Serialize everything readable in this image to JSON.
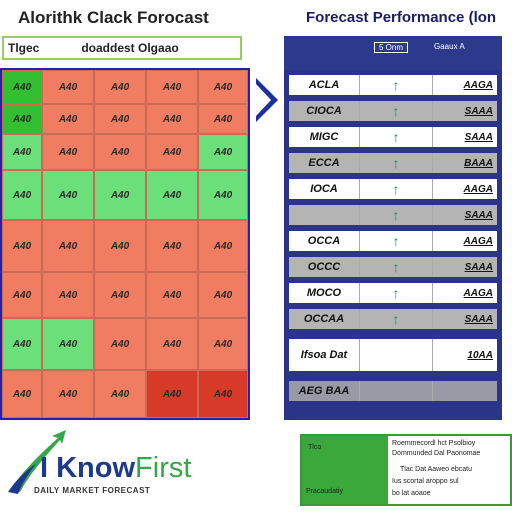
{
  "header": {
    "left_title": "Alorithk Clack Forocast",
    "right_title": "Forecast Performance (lon",
    "subbar_left": "Tlgec",
    "subbar_right": "doaddest Olgaao"
  },
  "colors": {
    "red": "#f07c62",
    "green": "#6be07a",
    "dark_green": "#32c032",
    "dark_red": "#d83a2a",
    "navy": "#2a3488"
  },
  "heatmap": {
    "rows": [
      [
        {
          "t": "A40",
          "c": "dark_green"
        },
        {
          "t": "A40",
          "c": "red"
        },
        {
          "t": "A40",
          "c": "red"
        },
        {
          "t": "A40",
          "c": "red"
        },
        {
          "t": "A40",
          "c": "red"
        }
      ],
      [
        {
          "t": "A40",
          "c": "dark_green"
        },
        {
          "t": "A40",
          "c": "red"
        },
        {
          "t": "A40",
          "c": "red"
        },
        {
          "t": "A40",
          "c": "red"
        },
        {
          "t": "A40",
          "c": "red"
        }
      ],
      [
        {
          "t": "A40",
          "c": "green"
        },
        {
          "t": "A40",
          "c": "red"
        },
        {
          "t": "A40",
          "c": "red"
        },
        {
          "t": "A40",
          "c": "red"
        },
        {
          "t": "A40",
          "c": "green"
        }
      ],
      [
        {
          "t": "A40",
          "c": "green"
        },
        {
          "t": "A40",
          "c": "green"
        },
        {
          "t": "A40",
          "c": "green"
        },
        {
          "t": "A40",
          "c": "green"
        },
        {
          "t": "A40",
          "c": "green"
        }
      ],
      [
        {
          "t": "A40",
          "c": "red"
        },
        {
          "t": "A40",
          "c": "red"
        },
        {
          "t": "A40",
          "c": "red"
        },
        {
          "t": "A40",
          "c": "red"
        },
        {
          "t": "A40",
          "c": "red"
        }
      ],
      [
        {
          "t": "A40",
          "c": "red"
        },
        {
          "t": "A40",
          "c": "red"
        },
        {
          "t": "A40",
          "c": "red"
        },
        {
          "t": "A40",
          "c": "red"
        },
        {
          "t": "A40",
          "c": "red"
        }
      ],
      [
        {
          "t": "A40",
          "c": "green"
        },
        {
          "t": "A40",
          "c": "green"
        },
        {
          "t": "A40",
          "c": "red"
        },
        {
          "t": "A40",
          "c": "red"
        },
        {
          "t": "A40",
          "c": "red"
        }
      ],
      [
        {
          "t": "A40",
          "c": "red"
        },
        {
          "t": "A40",
          "c": "red"
        },
        {
          "t": "A40",
          "c": "red"
        },
        {
          "t": "A40",
          "c": "dark_red"
        },
        {
          "t": "A40",
          "c": "dark_red"
        }
      ]
    ]
  },
  "perf_table": {
    "headers": [
      "",
      "5 Onm",
      "Gaaux A"
    ],
    "rows": [
      {
        "name": "ACLA",
        "value": "AAGA",
        "shade": "light"
      },
      {
        "name": "CIOCA",
        "value": "SAAA",
        "shade": "gray"
      },
      {
        "name": "MIGC",
        "value": "SAAA",
        "shade": "light"
      },
      {
        "name": "ECCA",
        "value": "BAAA",
        "shade": "gray"
      },
      {
        "name": "IOCA",
        "value": "AAGA",
        "shade": "light"
      },
      {
        "name": "",
        "value": "SAAA",
        "shade": "gray"
      },
      {
        "name": "OCCA",
        "value": "AAGA",
        "shade": "light"
      },
      {
        "name": "OCCC",
        "value": "SAAA",
        "shade": "gray"
      },
      {
        "name": "MOCO",
        "value": "AAGA",
        "shade": "light"
      },
      {
        "name": "OCCAA",
        "value": "SAAA",
        "shade": "gray"
      },
      {
        "name": "Ifsoa Dat",
        "value": "10AA",
        "shade": "light"
      },
      {
        "name": "AEG BAA",
        "value": "",
        "shade": "dark"
      }
    ]
  },
  "logo": {
    "name_main": "I Know",
    "name_accent": "First",
    "tagline": "DAILY MARKET FORECAST"
  },
  "legend": {
    "green_label": "Tlco",
    "green_label2": "Pracaudatiy",
    "lines": [
      "Roemmecordl hct Psolbioy",
      "Dommunded Dal Paonomae",
      "Tlac Dat Aaweo ebcatu",
      "Ius scortal aroppo sul",
      "bo lat aoaoe"
    ]
  }
}
